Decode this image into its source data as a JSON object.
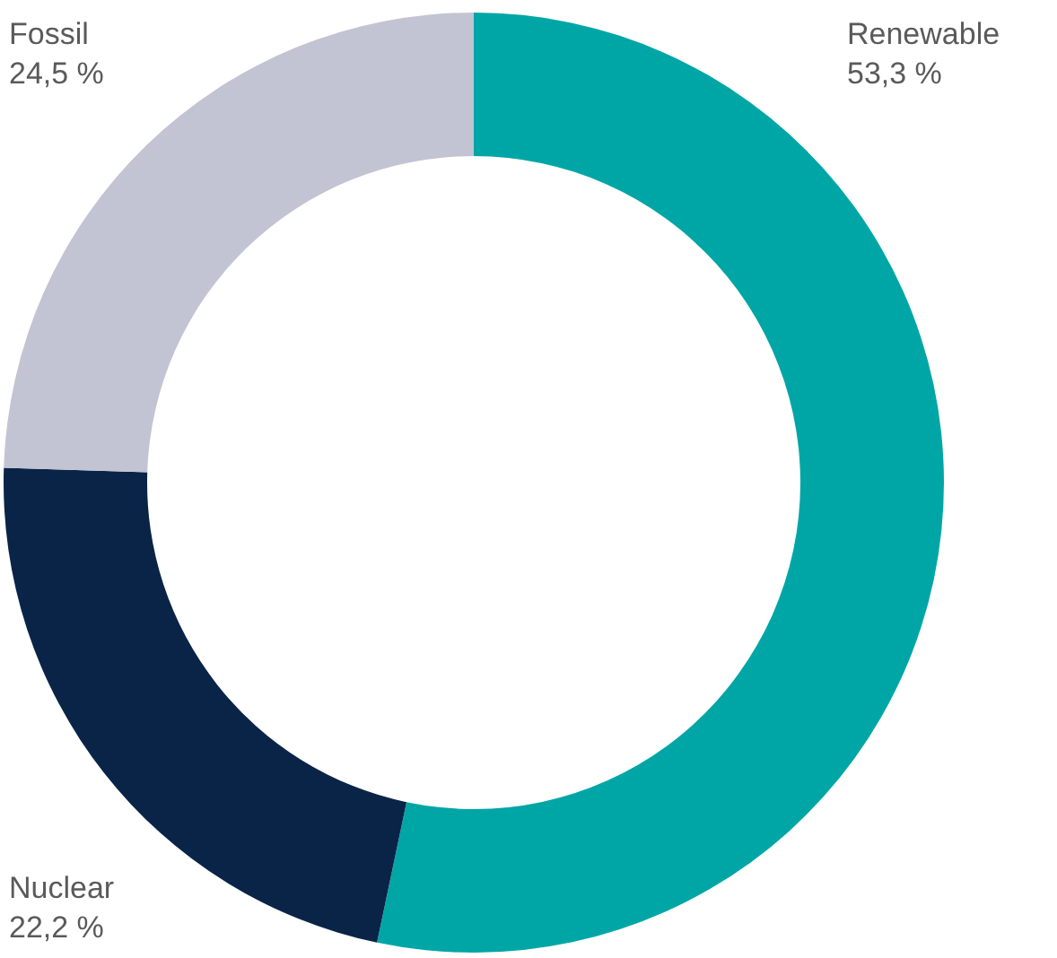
{
  "chart_data": {
    "type": "donut",
    "categories": [
      "Renewable",
      "Nuclear",
      "Fossil"
    ],
    "values": [
      53.3,
      22.2,
      24.5
    ],
    "value_labels": [
      "53,3 %",
      "22,2 %",
      "24,5 %"
    ],
    "colors": [
      "#00a6a6",
      "#0a2448",
      "#c2c3d3"
    ],
    "legend": false
  }
}
